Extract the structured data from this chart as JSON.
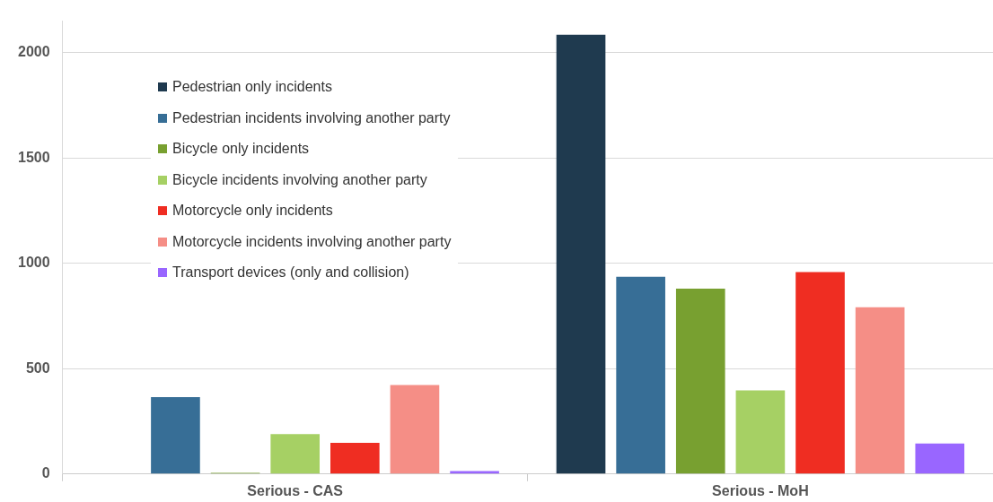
{
  "chart_data": {
    "type": "bar",
    "categories": [
      "Serious - CAS",
      "Serious - MoH"
    ],
    "series": [
      {
        "name": "Pedestrian only incidents",
        "color": "#1f3a4f",
        "values": [
          0,
          2085
        ]
      },
      {
        "name": "Pedestrian incidents involving another party",
        "color": "#376e96",
        "values": [
          365,
          937
        ]
      },
      {
        "name": "Bicycle only incidents",
        "color": "#78a030",
        "values": [
          6,
          880
        ]
      },
      {
        "name": "Bicycle incidents involving another party",
        "color": "#a6d064",
        "values": [
          190,
          397
        ]
      },
      {
        "name": "Motorcycle only incidents",
        "color": "#ef2d22",
        "values": [
          148,
          959
        ]
      },
      {
        "name": "Motorcycle incidents involving another party",
        "color": "#f58e86",
        "values": [
          423,
          792
        ]
      },
      {
        "name": "Transport devices (only and collision)",
        "color": "#9966ff",
        "values": [
          14,
          145
        ]
      }
    ],
    "ylim": [
      0,
      2150
    ],
    "yticks": [
      0,
      500,
      1000,
      1500,
      2000
    ],
    "grid": "y",
    "legend": "top left"
  }
}
